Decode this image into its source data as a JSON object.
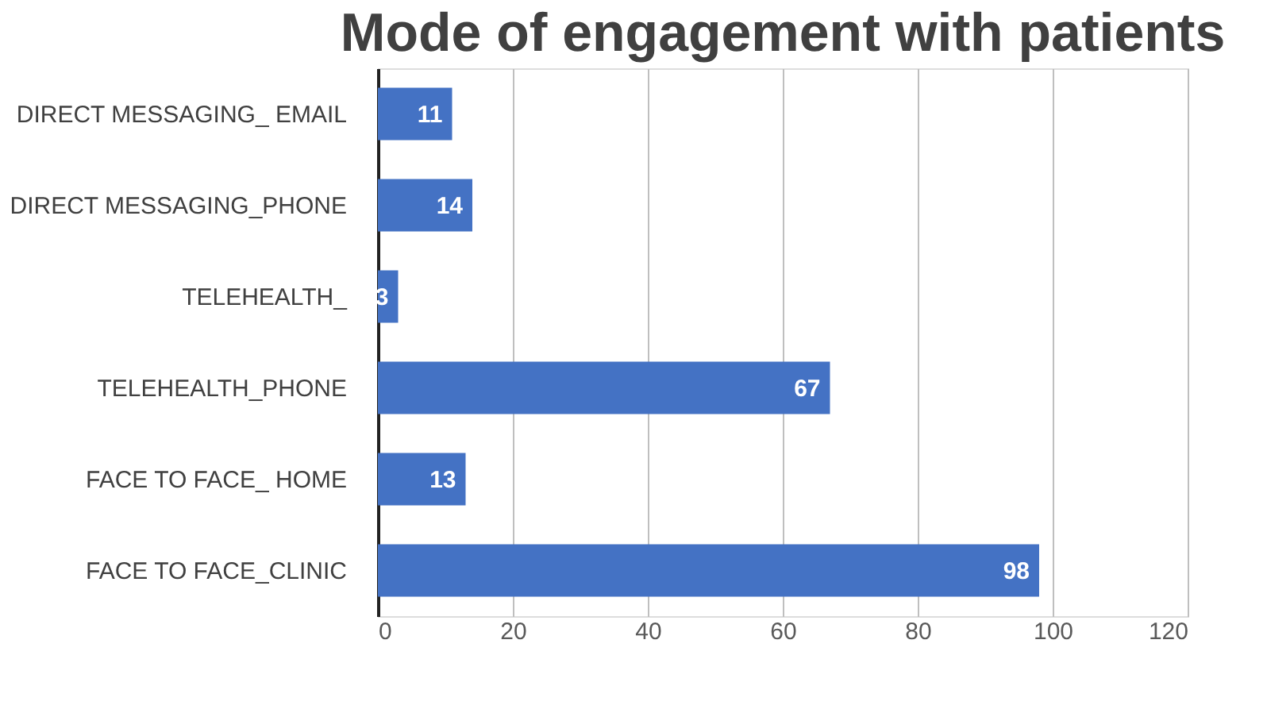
{
  "chart_data": {
    "type": "bar",
    "orientation": "horizontal",
    "title": "Mode of engagement with patients",
    "categories": [
      "DIRECT MESSAGING_ EMAIL",
      "DIRECT MESSAGING_PHONE",
      "TELEHEALTH_",
      "TELEHEALTH_PHONE",
      "FACE TO FACE_ HOME",
      "FACE TO FACE_CLINIC"
    ],
    "values": [
      11,
      14,
      3,
      67,
      13,
      98
    ],
    "color": "#4472c4",
    "xlim": [
      0,
      120
    ],
    "xticks": [
      0,
      20,
      40,
      60,
      80,
      100,
      120
    ],
    "grid": "x",
    "data_labels": true
  }
}
